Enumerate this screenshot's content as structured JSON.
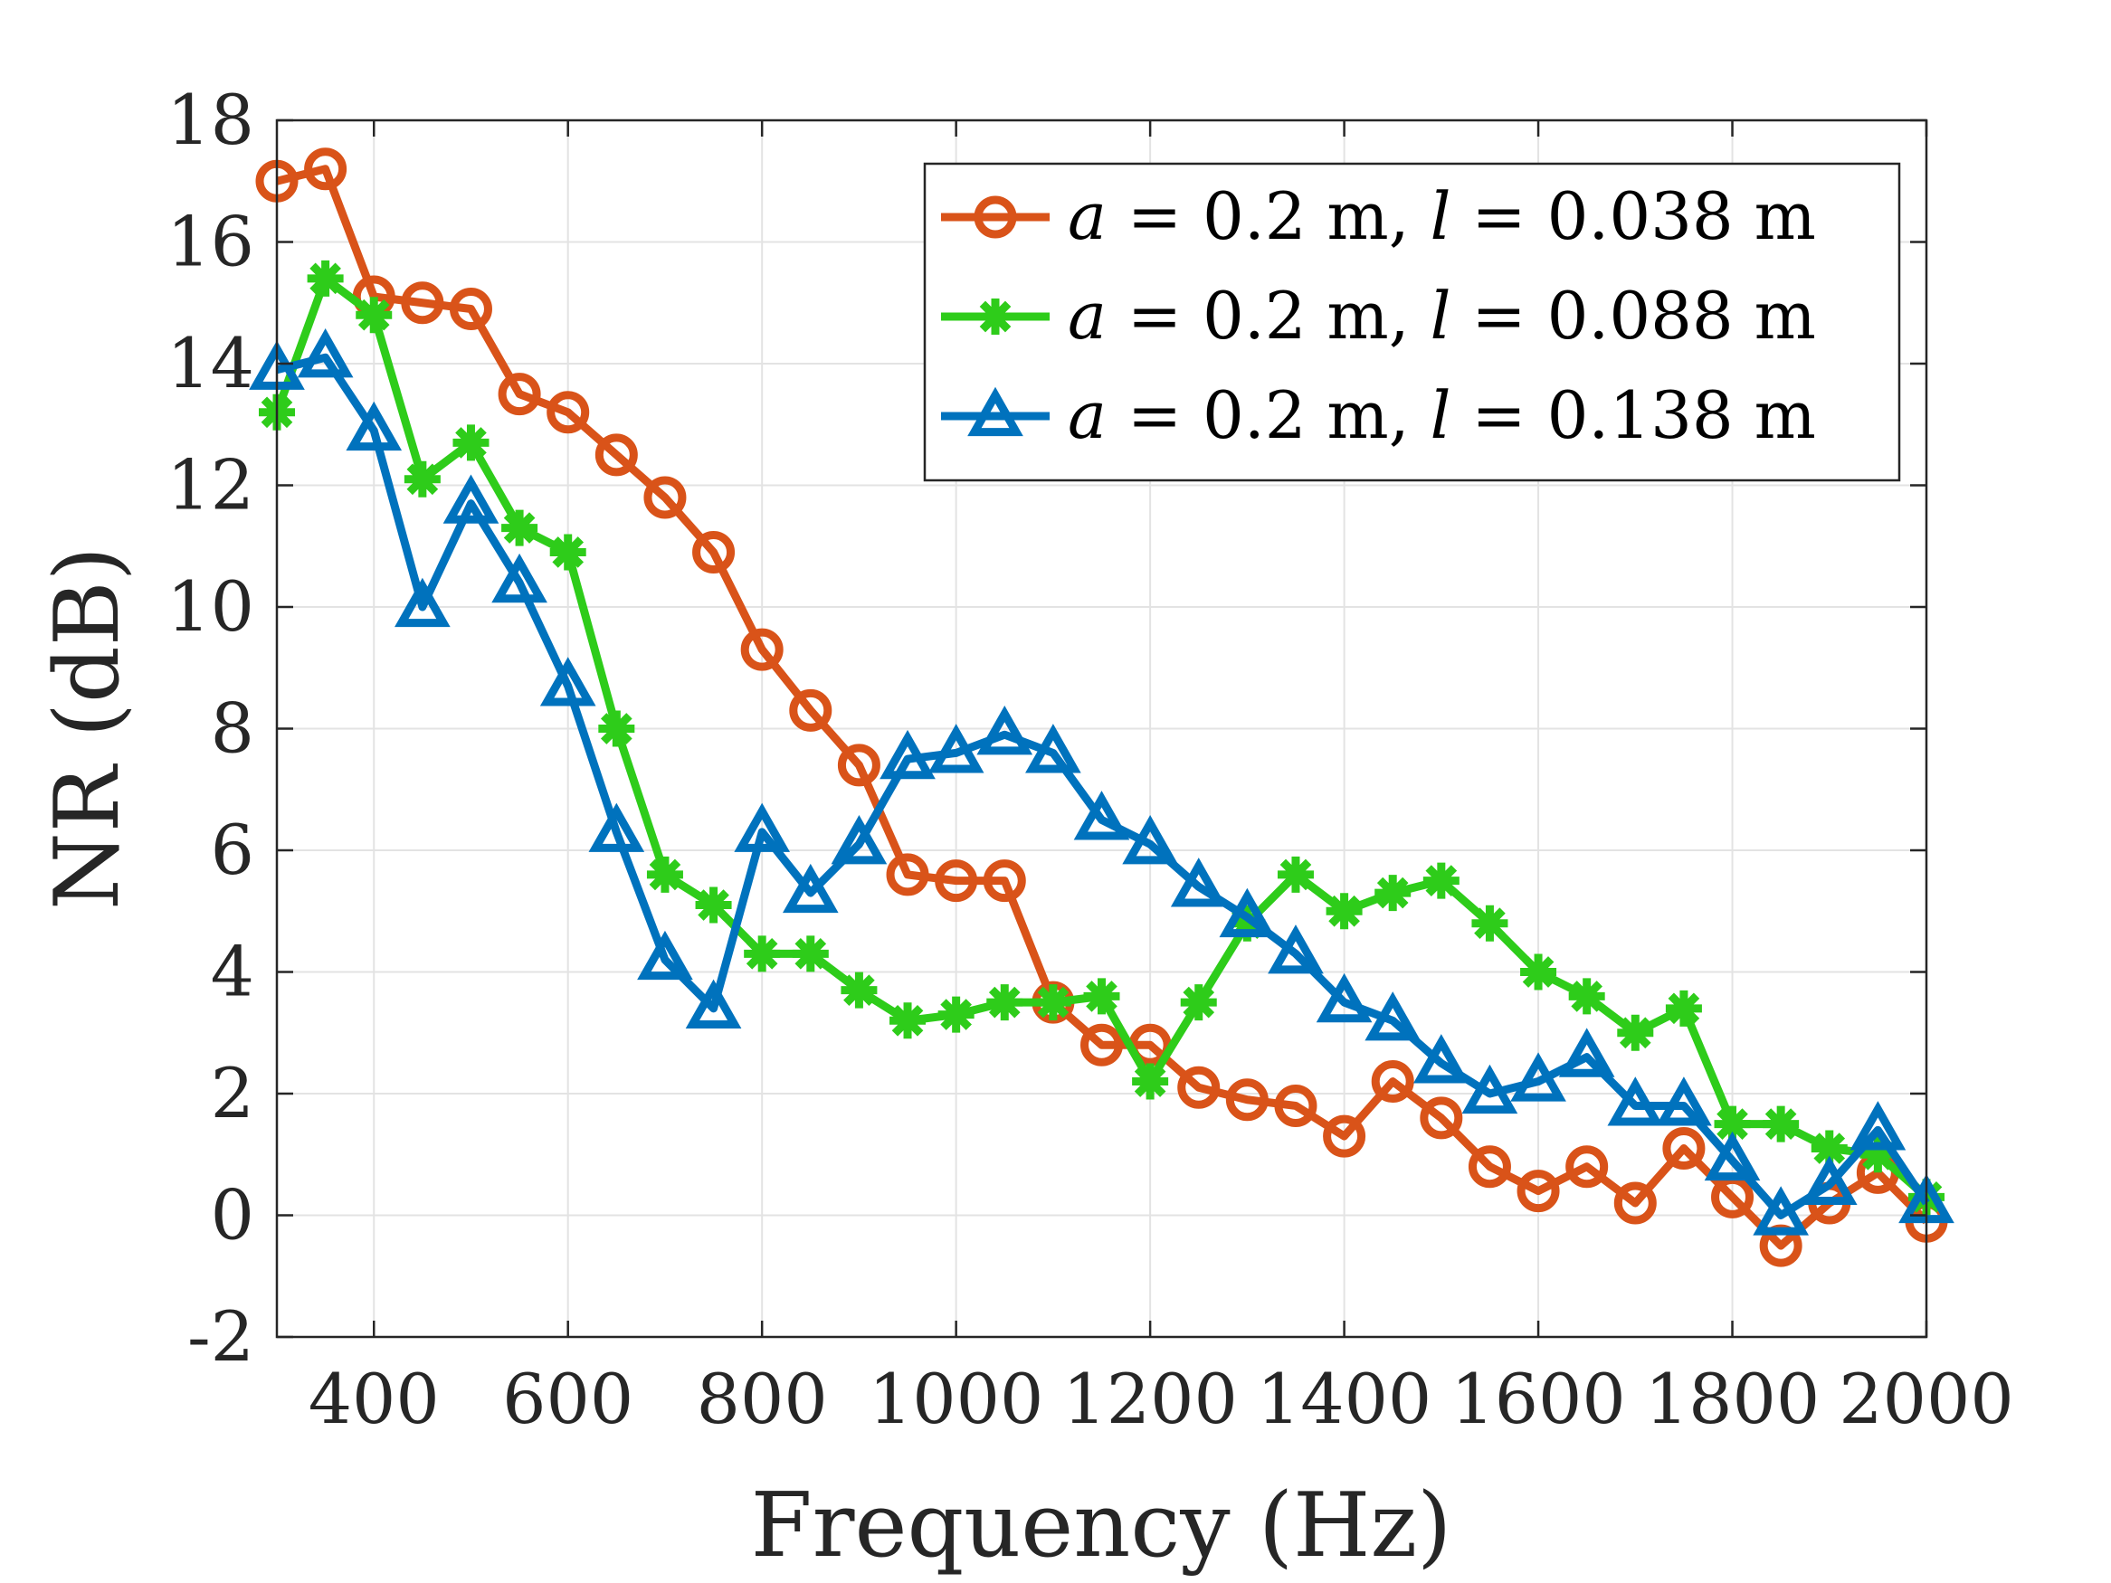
{
  "chart_data": {
    "type": "line",
    "title": "",
    "xlabel": "Frequency (Hz)",
    "ylabel": "NR (dB)",
    "xlim": [
      300,
      2000
    ],
    "ylim": [
      -2,
      18
    ],
    "xticks": [
      400,
      600,
      800,
      1000,
      1200,
      1400,
      1600,
      1800,
      2000
    ],
    "xtick_labels": [
      "400",
      "600",
      "800",
      "1000",
      "1200",
      "1400",
      "1600",
      "1800",
      "2000"
    ],
    "yticks": [
      -2,
      0,
      2,
      4,
      6,
      8,
      10,
      12,
      14,
      16,
      18
    ],
    "ytick_labels": [
      "-2",
      "0",
      "2",
      "4",
      "6",
      "8",
      "10",
      "12",
      "14",
      "16",
      "18"
    ],
    "grid": true,
    "legend_position": "top-right",
    "x": [
      300,
      350,
      400,
      450,
      500,
      550,
      600,
      650,
      700,
      750,
      800,
      850,
      900,
      950,
      1000,
      1050,
      1100,
      1150,
      1200,
      1250,
      1300,
      1350,
      1400,
      1450,
      1500,
      1550,
      1600,
      1650,
      1700,
      1750,
      1800,
      1850,
      1900,
      1950,
      2000
    ],
    "series": [
      {
        "legend_var1": "a",
        "legend_mid": " = 0.2 m, ",
        "legend_var2": "l",
        "legend_end": " = 0.038 m",
        "color": "#D95319",
        "marker": "circle",
        "values": [
          17.0,
          17.2,
          15.1,
          15.0,
          14.9,
          13.5,
          13.2,
          12.5,
          11.8,
          10.9,
          9.3,
          8.3,
          7.4,
          5.6,
          5.5,
          5.5,
          3.5,
          2.8,
          2.8,
          2.1,
          1.9,
          1.8,
          1.3,
          2.2,
          1.6,
          0.8,
          0.4,
          0.8,
          0.2,
          1.1,
          0.3,
          -0.5,
          0.2,
          0.7,
          -0.1
        ]
      },
      {
        "legend_var1": "a",
        "legend_mid": " = 0.2 m, ",
        "legend_var2": "l",
        "legend_end": " = 0.088 m",
        "color": "#2ECC1A",
        "marker": "asterisk",
        "values": [
          13.2,
          15.4,
          14.8,
          12.1,
          12.7,
          11.3,
          10.9,
          8.0,
          5.6,
          5.1,
          4.3,
          4.3,
          3.7,
          3.2,
          3.3,
          3.5,
          3.5,
          3.6,
          2.2,
          3.5,
          4.8,
          5.6,
          5.0,
          5.3,
          5.5,
          4.8,
          4.0,
          3.6,
          3.0,
          3.4,
          1.5,
          1.5,
          1.1,
          1.0,
          0.3
        ]
      },
      {
        "legend_var1": "a",
        "legend_mid": " = 0.2 m, ",
        "legend_var2": "l",
        "legend_end": " = 0.138 m",
        "color": "#0072BD",
        "marker": "triangle",
        "values": [
          13.9,
          14.1,
          12.9,
          10.0,
          11.7,
          10.4,
          8.7,
          6.3,
          4.2,
          3.4,
          6.3,
          5.3,
          6.1,
          7.5,
          7.6,
          7.9,
          7.6,
          6.5,
          6.1,
          5.4,
          4.9,
          4.3,
          3.5,
          3.2,
          2.5,
          2.0,
          2.2,
          2.6,
          1.8,
          1.8,
          0.9,
          0.0,
          0.5,
          1.4,
          0.2
        ]
      }
    ]
  }
}
